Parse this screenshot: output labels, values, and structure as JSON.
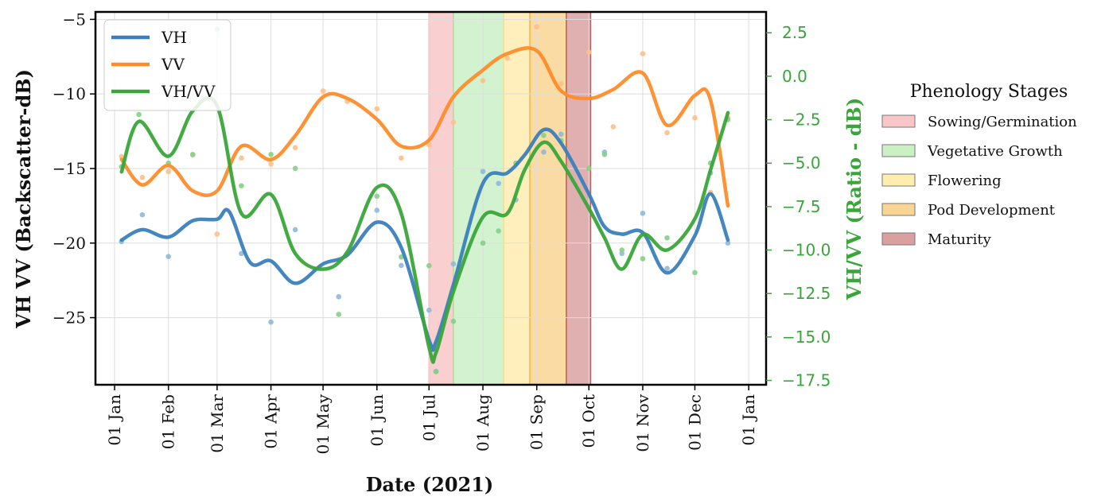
{
  "chart_data": {
    "type": "line",
    "xlabel": "Date (2021)",
    "ylabel_left": "VH VV (Backscatter-dB)",
    "ylabel_right": "VH/VV (Ratio - dB)",
    "x_ticks": [
      "01 Jan",
      "01 Feb",
      "01 Mar",
      "01 Apr",
      "01 May",
      "01 Jun",
      "01 Jul",
      "01 Aug",
      "01 Sep",
      "01 Oct",
      "01 Nov",
      "01 Dec",
      "01 Jan"
    ],
    "x_tick_dates": [
      "2021-01-01",
      "2021-02-01",
      "2021-03-01",
      "2021-04-01",
      "2021-05-01",
      "2021-06-01",
      "2021-07-01",
      "2021-08-01",
      "2021-09-01",
      "2021-10-01",
      "2021-11-01",
      "2021-12-01",
      "2022-01-01"
    ],
    "xlim": [
      "2020-12-21",
      "2022-01-11"
    ],
    "ylim_left": [
      -29.5,
      -4.5
    ],
    "yticks_left": [
      -5,
      -10,
      -15,
      -20,
      -25
    ],
    "ytick_labels_left": [
      "−5",
      "−10",
      "−15",
      "−20",
      "−25"
    ],
    "ylim_right": [
      -17.75,
      3.7
    ],
    "yticks_right": [
      2.5,
      0.0,
      -2.5,
      -5.0,
      -7.5,
      -10.0,
      -12.5,
      -15.0,
      -17.5
    ],
    "ytick_labels_right": [
      "2.5",
      "0.0",
      "−2.5",
      "−5.0",
      "−7.5",
      "−10.0",
      "−12.5",
      "−15.0",
      "−17.5"
    ],
    "legend": {
      "placement": "top-left",
      "entries": [
        "VH",
        "VV",
        "VH/VV"
      ]
    },
    "grid": true,
    "series": [
      {
        "name": "VH",
        "axis": "left",
        "color": "#3a7fba",
        "x": [
          "2021-01-05",
          "2021-01-17",
          "2021-02-01",
          "2021-02-15",
          "2021-03-01",
          "2021-03-08",
          "2021-03-20",
          "2021-04-01",
          "2021-04-15",
          "2021-05-01",
          "2021-05-15",
          "2021-06-01",
          "2021-06-15",
          "2021-07-01",
          "2021-07-05",
          "2021-07-15",
          "2021-08-01",
          "2021-08-15",
          "2021-08-25",
          "2021-09-05",
          "2021-09-15",
          "2021-10-01",
          "2021-10-10",
          "2021-10-20",
          "2021-11-01",
          "2021-11-15",
          "2021-12-01",
          "2021-12-10",
          "2021-12-20"
        ],
        "values": [
          -19.8,
          -19.1,
          -19.6,
          -18.5,
          -18.4,
          -17.9,
          -21.3,
          -21.2,
          -22.7,
          -21.4,
          -20.8,
          -18.6,
          -20.3,
          -26.5,
          -26.6,
          -22.8,
          -16.0,
          -15.3,
          -14.1,
          -12.4,
          -13.3,
          -16.7,
          -18.9,
          -19.4,
          -19.3,
          -22.0,
          -19.5,
          -16.7,
          -19.8
        ]
      },
      {
        "name": "VV",
        "axis": "left",
        "color": "#ff8c2a",
        "x": [
          "2021-01-05",
          "2021-01-17",
          "2021-02-01",
          "2021-02-15",
          "2021-03-01",
          "2021-03-15",
          "2021-04-01",
          "2021-04-15",
          "2021-05-01",
          "2021-05-15",
          "2021-06-01",
          "2021-06-15",
          "2021-07-01",
          "2021-07-15",
          "2021-08-01",
          "2021-08-15",
          "2021-09-01",
          "2021-09-15",
          "2021-10-01",
          "2021-10-15",
          "2021-11-01",
          "2021-11-15",
          "2021-12-01",
          "2021-12-10",
          "2021-12-20"
        ],
        "values": [
          -14.4,
          -16.1,
          -14.8,
          -16.5,
          -16.5,
          -13.5,
          -14.4,
          -12.8,
          -10.2,
          -10.3,
          -11.7,
          -13.5,
          -13.1,
          -10.2,
          -8.4,
          -7.3,
          -7.1,
          -9.8,
          -10.3,
          -9.7,
          -8.6,
          -12.1,
          -10.1,
          -10.4,
          -17.5
        ]
      },
      {
        "name": "VH/VV",
        "axis": "right",
        "color": "#3aa53a",
        "x": [
          "2021-01-05",
          "2021-01-15",
          "2021-02-01",
          "2021-02-15",
          "2021-03-01",
          "2021-03-15",
          "2021-04-01",
          "2021-04-15",
          "2021-05-01",
          "2021-05-15",
          "2021-06-01",
          "2021-06-15",
          "2021-07-01",
          "2021-07-05",
          "2021-07-15",
          "2021-08-01",
          "2021-08-15",
          "2021-08-25",
          "2021-09-05",
          "2021-09-15",
          "2021-10-01",
          "2021-10-10",
          "2021-10-20",
          "2021-11-01",
          "2021-11-15",
          "2021-12-01",
          "2021-12-10",
          "2021-12-20"
        ],
        "values": [
          -5.5,
          -2.6,
          -4.6,
          -2.0,
          -1.7,
          -7.9,
          -6.8,
          -10.2,
          -11.1,
          -10.1,
          -6.4,
          -7.9,
          -15.6,
          -15.9,
          -12.4,
          -8.1,
          -7.9,
          -5.4,
          -3.8,
          -4.9,
          -7.6,
          -9.3,
          -11.1,
          -9.1,
          -10.0,
          -8.2,
          -5.4,
          -2.1
        ]
      }
    ],
    "scatter_points": {
      "VH": {
        "color": "#8fb8dc",
        "x": [
          "2021-01-05",
          "2021-01-17",
          "2021-02-01",
          "2021-03-15",
          "2021-04-01",
          "2021-04-15",
          "2021-05-10",
          "2021-06-01",
          "2021-06-15",
          "2021-07-01",
          "2021-07-05",
          "2021-07-15",
          "2021-08-01",
          "2021-08-10",
          "2021-08-20",
          "2021-09-05",
          "2021-09-15",
          "2021-10-10",
          "2021-10-20",
          "2021-11-01",
          "2021-11-15",
          "2021-12-10",
          "2021-12-20"
        ],
        "values": [
          -19.9,
          -18.1,
          -20.9,
          -20.7,
          -25.3,
          -19.1,
          -23.6,
          -17.8,
          -21.5,
          -24.5,
          -28.6,
          -21.4,
          -15.2,
          -16.0,
          -17.1,
          -13.9,
          -12.7,
          -13.9,
          -20.7,
          -18.0,
          -21.7,
          -15.3,
          -20.0
        ]
      },
      "VV": {
        "color": "#ffbf8a",
        "x": [
          "2021-01-05",
          "2021-01-17",
          "2021-02-01",
          "2021-02-15",
          "2021-03-01",
          "2021-03-15",
          "2021-04-01",
          "2021-04-15",
          "2021-05-01",
          "2021-05-15",
          "2021-06-01",
          "2021-06-15",
          "2021-07-01",
          "2021-07-15",
          "2021-08-01",
          "2021-08-15",
          "2021-09-01",
          "2021-09-15",
          "2021-10-01",
          "2021-10-15",
          "2021-11-01",
          "2021-11-15",
          "2021-12-01",
          "2021-12-10",
          "2021-12-20"
        ],
        "values": [
          -14.2,
          -15.6,
          -15.2,
          -14.1,
          -19.4,
          -14.3,
          -14.7,
          -13.6,
          -9.8,
          -10.5,
          -11.0,
          -14.3,
          -13.4,
          -11.9,
          -9.1,
          -7.6,
          -5.5,
          -9.3,
          -7.2,
          -12.2,
          -7.3,
          -12.6,
          -11.6,
          -16.6,
          -11.6
        ]
      },
      "VH/VV": {
        "color": "#86cf86",
        "x": [
          "2021-01-05",
          "2021-01-15",
          "2021-02-01",
          "2021-02-15",
          "2021-03-01",
          "2021-03-15",
          "2021-04-01",
          "2021-04-15",
          "2021-05-10",
          "2021-06-01",
          "2021-06-15",
          "2021-07-01",
          "2021-07-05",
          "2021-07-15",
          "2021-08-01",
          "2021-08-10",
          "2021-08-20",
          "2021-09-05",
          "2021-09-15",
          "2021-10-01",
          "2021-10-10",
          "2021-10-20",
          "2021-11-01",
          "2021-11-15",
          "2021-12-01",
          "2021-12-10",
          "2021-12-20"
        ],
        "values": [
          -5.2,
          -2.2,
          -5.0,
          -4.5,
          2.7,
          -6.3,
          -4.5,
          -5.3,
          -13.7,
          -6.9,
          -10.4,
          -10.9,
          -17.0,
          -14.1,
          -9.6,
          -8.9,
          -5.0,
          -3.4,
          -3.7,
          -5.3,
          -4.5,
          -10.0,
          -10.5,
          -9.3,
          -11.3,
          -5.0,
          -2.5
        ]
      }
    },
    "phenology": {
      "title": "Phenology Stages",
      "stages": [
        {
          "label": "Sowing/Germination",
          "start": "2021-07-01",
          "end": "2021-07-15",
          "color": "#f4a0a0"
        },
        {
          "label": "Vegetative Growth",
          "start": "2021-07-15",
          "end": "2021-08-13",
          "color": "#a8e6a0"
        },
        {
          "label": "Flowering",
          "start": "2021-08-13",
          "end": "2021-08-28",
          "color": "#ffe07a"
        },
        {
          "label": "Pod Development",
          "start": "2021-08-28",
          "end": "2021-09-18",
          "color": "#f5b84a"
        },
        {
          "label": "Maturity",
          "start": "2021-09-18",
          "end": "2021-10-02",
          "color": "#c26060"
        }
      ]
    }
  }
}
